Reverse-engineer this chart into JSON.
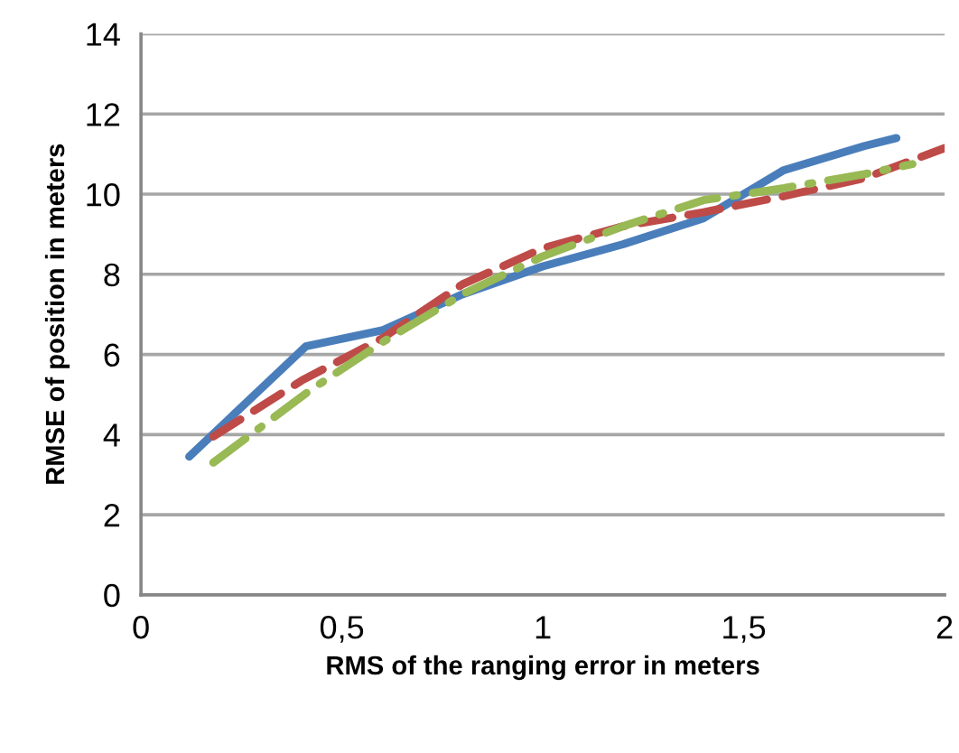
{
  "chart_data": {
    "type": "line",
    "xlabel": "RMS of the ranging error in meters",
    "ylabel": "RMSE of position in meters",
    "xlim": [
      0,
      2
    ],
    "ylim": [
      0,
      14
    ],
    "xticks": [
      0,
      {
        "value": 0.5,
        "label": "0,5"
      },
      1,
      {
        "value": 1.5,
        "label": "1,5"
      },
      2
    ],
    "yticks": [
      0,
      2,
      4,
      6,
      8,
      10,
      12,
      14
    ],
    "grid": "y",
    "marker": "none",
    "series": [
      {
        "color": "#4a7ebb",
        "line_style": "solid",
        "x": [
          0.12,
          0.41,
          0.6,
          0.8,
          1.0,
          1.2,
          1.4,
          1.6,
          1.8,
          1.88
        ],
        "values": [
          3.45,
          6.2,
          6.6,
          7.5,
          8.2,
          8.75,
          9.4,
          10.6,
          11.2,
          11.4
        ]
      },
      {
        "color": "#be4b48",
        "line_style": "dashed",
        "x": [
          0.18,
          0.4,
          0.6,
          0.8,
          1.0,
          1.2,
          1.4,
          1.6,
          1.8,
          2.0
        ],
        "values": [
          3.95,
          5.35,
          6.4,
          7.75,
          8.65,
          9.2,
          9.55,
          9.95,
          10.4,
          11.15
        ]
      },
      {
        "color": "#98b954",
        "line_style": "dashdot",
        "x": [
          0.18,
          0.42,
          0.6,
          0.8,
          1.0,
          1.2,
          1.4,
          1.6,
          1.8,
          1.92
        ],
        "values": [
          3.3,
          5.1,
          6.3,
          7.5,
          8.45,
          9.2,
          9.85,
          10.15,
          10.5,
          10.75
        ]
      }
    ]
  }
}
